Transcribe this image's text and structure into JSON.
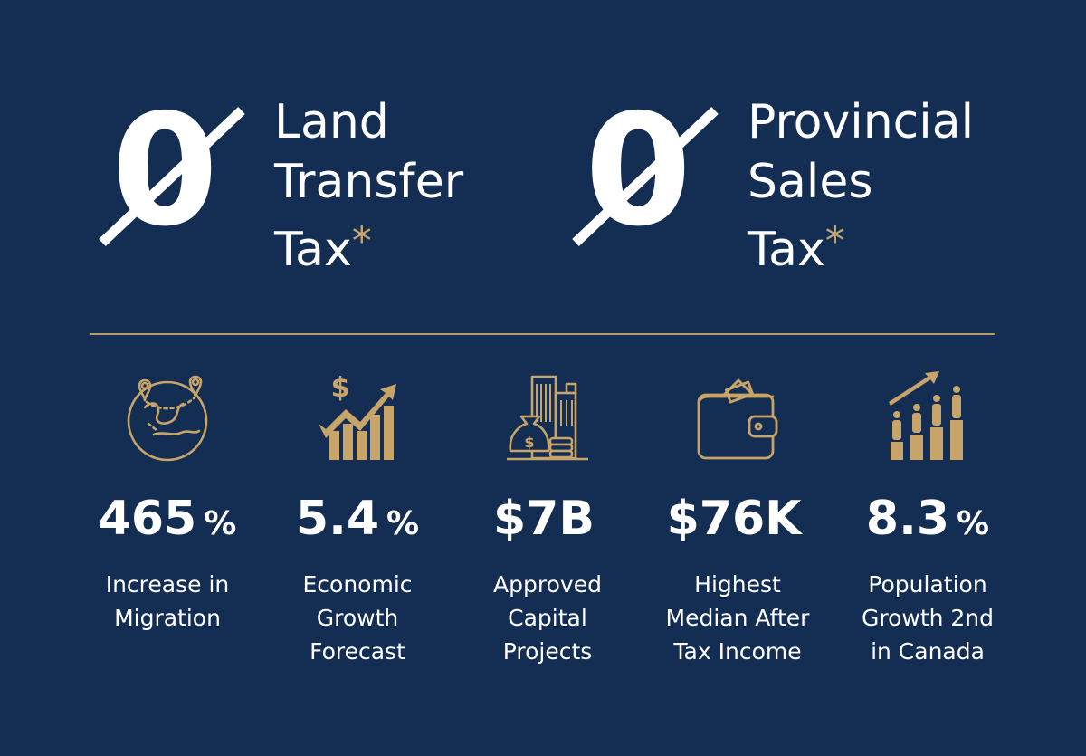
{
  "taxes": [
    {
      "zero": "0",
      "lines": [
        "Land",
        "Transfer",
        "Tax"
      ],
      "asterisk": "*"
    },
    {
      "zero": "0",
      "lines": [
        "Provincial",
        "Sales",
        "Tax"
      ],
      "asterisk": "*"
    }
  ],
  "stats": [
    {
      "icon": "globe-pins-icon",
      "value": "465",
      "unit": "%",
      "caption": [
        "Increase in",
        "Migration"
      ]
    },
    {
      "icon": "growth-chart-icon",
      "value": "5.4",
      "unit": "%",
      "caption": [
        "Economic",
        "Growth",
        "Forecast"
      ]
    },
    {
      "icon": "buildings-money-icon",
      "value": "$7B",
      "unit": "",
      "caption": [
        "Approved",
        "Capital",
        "Projects"
      ]
    },
    {
      "icon": "wallet-icon",
      "value": "$76K",
      "unit": "",
      "caption": [
        "Highest",
        "Median After",
        "Tax Income"
      ]
    },
    {
      "icon": "population-growth-icon",
      "value": "8.3",
      "unit": "%",
      "caption": [
        "Population",
        "Growth 2nd",
        "in Canada"
      ]
    }
  ],
  "colors": {
    "background": "#142d52",
    "accent": "#c7a46a",
    "text": "#ffffff"
  }
}
